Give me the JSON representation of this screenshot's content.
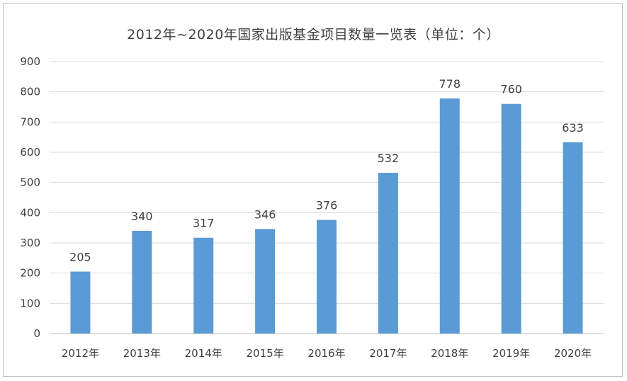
{
  "chart_data": {
    "type": "bar",
    "title": "2012年~2020年国家出版基金项目数量一览表（单位：个）",
    "categories": [
      "2012年",
      "2013年",
      "2014年",
      "2015年",
      "2016年",
      "2017年",
      "2018年",
      "2019年",
      "2020年"
    ],
    "values": [
      205,
      340,
      317,
      346,
      376,
      532,
      778,
      760,
      633
    ],
    "ylim": [
      0,
      900
    ],
    "yticks": [
      0,
      100,
      200,
      300,
      400,
      500,
      600,
      700,
      800,
      900
    ],
    "grid": true,
    "legend": "none",
    "colors": {
      "bar": "#5b9bd5",
      "grid": "#d9d9d9",
      "text": "#404040"
    }
  }
}
